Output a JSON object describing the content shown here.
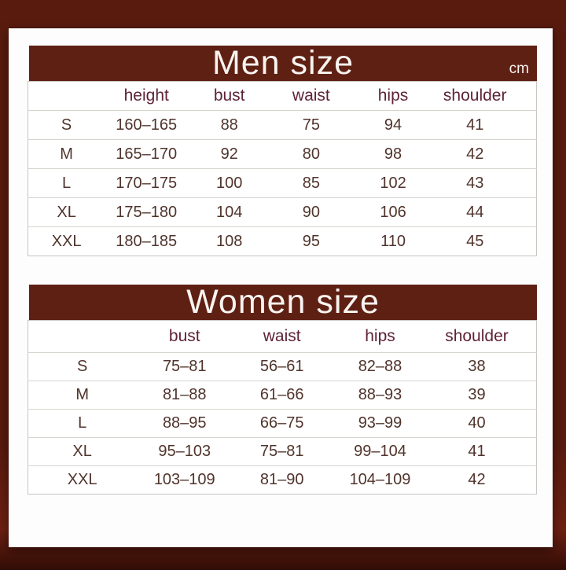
{
  "colors": {
    "background": "#591b0e",
    "panel": "#fdfdfd",
    "bar": "#5f2014",
    "title-text": "#f8f4f0",
    "header-text": "#5e2238",
    "cell-text": "#50342c",
    "table-border": "#c9c5c1",
    "row-line": "#d7d3cf"
  },
  "chart_data": [
    {
      "type": "table",
      "title": "Men size",
      "unit": "cm",
      "headers": [
        "",
        "height",
        "bust",
        "waist",
        "hips",
        "shoulder"
      ],
      "rows": [
        [
          "S",
          "160–165",
          "88",
          "75",
          "94",
          "41"
        ],
        [
          "M",
          "165–170",
          "92",
          "80",
          "98",
          "42"
        ],
        [
          "L",
          "170–175",
          "100",
          "85",
          "102",
          "43"
        ],
        [
          "XL",
          "175–180",
          "104",
          "90",
          "106",
          "44"
        ],
        [
          "XXL",
          "180–185",
          "108",
          "95",
          "110",
          "45"
        ]
      ]
    },
    {
      "type": "table",
      "title": "Women size",
      "headers": [
        "",
        "bust",
        "waist",
        "hips",
        "shoulder"
      ],
      "rows": [
        [
          "S",
          "75–81",
          "56–61",
          "82–88",
          "38"
        ],
        [
          "M",
          "81–88",
          "61–66",
          "88–93",
          "39"
        ],
        [
          "L",
          "88–95",
          "66–75",
          "93–99",
          "40"
        ],
        [
          "XL",
          "95–103",
          "75–81",
          "99–104",
          "41"
        ],
        [
          "XXL",
          "103–109",
          "81–90",
          "104–109",
          "42"
        ]
      ]
    }
  ]
}
